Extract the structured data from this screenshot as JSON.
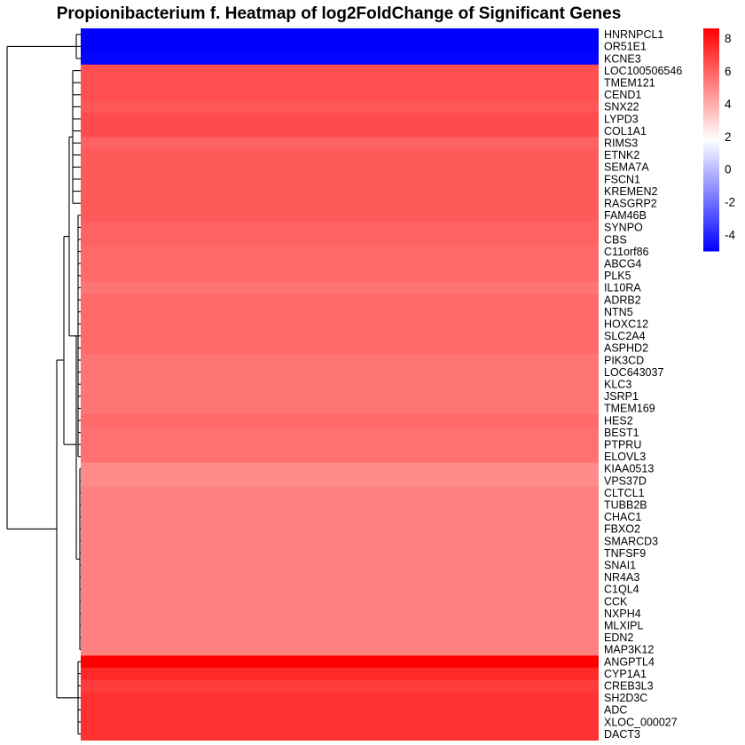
{
  "chart_data": {
    "type": "heatmap",
    "title": "Propionibacterium f. Heatmap of log2FoldChange of Significant Genes",
    "rows": [
      {
        "gene": "HNRNPCL1",
        "value": -5.0
      },
      {
        "gene": "OR51E1",
        "value": -5.0
      },
      {
        "gene": "KCNE3",
        "value": -4.9
      },
      {
        "gene": "LOC100506546",
        "value": 6.5
      },
      {
        "gene": "TMEM121",
        "value": 6.5
      },
      {
        "gene": "CEND1",
        "value": 6.5
      },
      {
        "gene": "SNX22",
        "value": 6.3
      },
      {
        "gene": "LYPD3",
        "value": 6.6
      },
      {
        "gene": "COL1A1",
        "value": 6.6
      },
      {
        "gene": "RIMS3",
        "value": 6.0
      },
      {
        "gene": "ETNK2",
        "value": 6.2
      },
      {
        "gene": "SEMA7A",
        "value": 6.2
      },
      {
        "gene": "FSCN1",
        "value": 6.2
      },
      {
        "gene": "KREMEN2",
        "value": 6.2
      },
      {
        "gene": "RASGRP2",
        "value": 6.2
      },
      {
        "gene": "FAM46B",
        "value": 6.2
      },
      {
        "gene": "SYNPO",
        "value": 6.0
      },
      {
        "gene": "CBS",
        "value": 6.0
      },
      {
        "gene": "C11orf86",
        "value": 5.8
      },
      {
        "gene": "ABCG4",
        "value": 5.8
      },
      {
        "gene": "PLK5",
        "value": 5.8
      },
      {
        "gene": "IL10RA",
        "value": 5.5
      },
      {
        "gene": "ADRB2",
        "value": 5.8
      },
      {
        "gene": "NTN5",
        "value": 5.8
      },
      {
        "gene": "HOXC12",
        "value": 5.8
      },
      {
        "gene": "SLC2A4",
        "value": 5.8
      },
      {
        "gene": "ASPHD2",
        "value": 5.8
      },
      {
        "gene": "PIK3CD",
        "value": 5.5
      },
      {
        "gene": "LOC643037",
        "value": 5.5
      },
      {
        "gene": "KLC3",
        "value": 5.5
      },
      {
        "gene": "JSRP1",
        "value": 5.5
      },
      {
        "gene": "TMEM169",
        "value": 5.5
      },
      {
        "gene": "HES2",
        "value": 5.8
      },
      {
        "gene": "BEST1",
        "value": 5.6
      },
      {
        "gene": "PTPRU",
        "value": 5.6
      },
      {
        "gene": "ELOVL3",
        "value": 5.6
      },
      {
        "gene": "KIAA0513",
        "value": 4.9
      },
      {
        "gene": "VPS37D",
        "value": 4.9
      },
      {
        "gene": "CLTCL1",
        "value": 5.2
      },
      {
        "gene": "TUBB2B",
        "value": 5.2
      },
      {
        "gene": "CHAC1",
        "value": 5.2
      },
      {
        "gene": "FBXO2",
        "value": 5.2
      },
      {
        "gene": "SMARCD3",
        "value": 5.2
      },
      {
        "gene": "TNFSF9",
        "value": 5.2
      },
      {
        "gene": "SNAI1",
        "value": 5.2
      },
      {
        "gene": "NR4A3",
        "value": 5.2
      },
      {
        "gene": "C1QL4",
        "value": 5.2
      },
      {
        "gene": "CCK",
        "value": 5.2
      },
      {
        "gene": "NXPH4",
        "value": 5.2
      },
      {
        "gene": "MLXIPL",
        "value": 5.2
      },
      {
        "gene": "EDN2",
        "value": 5.2
      },
      {
        "gene": "MAP3K12",
        "value": 5.2
      },
      {
        "gene": "ANGPTL4",
        "value": 8.6
      },
      {
        "gene": "CYP1A1",
        "value": 7.5
      },
      {
        "gene": "CREB3L3",
        "value": 7.0
      },
      {
        "gene": "SH2D3C",
        "value": 7.3
      },
      {
        "gene": "ADC",
        "value": 7.3
      },
      {
        "gene": "XLOC_000027",
        "value": 7.3
      },
      {
        "gene": "DACT3",
        "value": 7.3
      }
    ],
    "color_scale": {
      "min": -5.0,
      "max": 8.6,
      "colors": [
        "#0000ff",
        "#ffffff",
        "#ff0000"
      ],
      "ticks": [
        -4,
        -2,
        0,
        2,
        4,
        6,
        8
      ]
    },
    "dendrogram": "left",
    "legend": "right"
  }
}
